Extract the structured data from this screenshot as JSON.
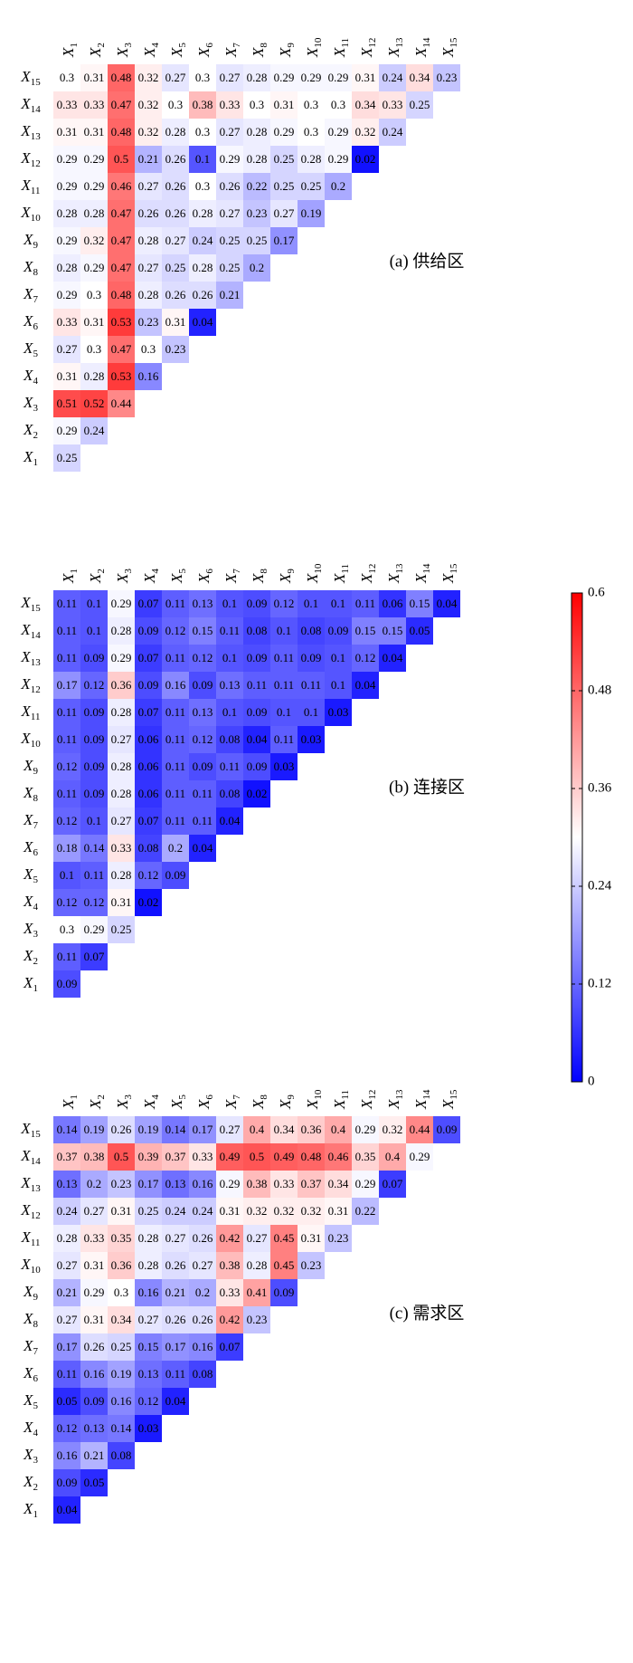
{
  "chart_data": {
    "type": "heatmap",
    "colorbar": {
      "range": [
        0,
        0.6
      ],
      "ticks": [
        "0",
        "0.12",
        "0.24",
        "0.36",
        "0.48",
        "0.6"
      ],
      "colors": {
        "low": "#0000ff",
        "mid": "#ffffff",
        "high": "#ff0000"
      }
    },
    "variable_labels": [
      {
        "base": "X",
        "sub": "1"
      },
      {
        "base": "X",
        "sub": "2"
      },
      {
        "base": "X",
        "sub": "3"
      },
      {
        "base": "X",
        "sub": "4"
      },
      {
        "base": "X",
        "sub": "5"
      },
      {
        "base": "X",
        "sub": "6"
      },
      {
        "base": "X",
        "sub": "7"
      },
      {
        "base": "X",
        "sub": "8"
      },
      {
        "base": "X",
        "sub": "9"
      },
      {
        "base": "X",
        "sub": "10"
      },
      {
        "base": "X",
        "sub": "11"
      },
      {
        "base": "X",
        "sub": "12"
      },
      {
        "base": "X",
        "sub": "13"
      },
      {
        "base": "X",
        "sub": "14"
      },
      {
        "base": "X",
        "sub": "15"
      }
    ],
    "panels": [
      {
        "label": "(a) 供给区",
        "matrix": [
          [
            "0.25"
          ],
          [
            "0.29",
            "0.24"
          ],
          [
            "0.51",
            "0.52",
            "0.44"
          ],
          [
            "0.31",
            "0.28",
            "0.53",
            "0.16"
          ],
          [
            "0.27",
            "0.3",
            "0.47",
            "0.3",
            "0.23"
          ],
          [
            "0.33",
            "0.31",
            "0.53",
            "0.23",
            "0.31",
            "0.04"
          ],
          [
            "0.29",
            "0.3",
            "0.48",
            "0.28",
            "0.26",
            "0.26",
            "0.21"
          ],
          [
            "0.28",
            "0.29",
            "0.47",
            "0.27",
            "0.25",
            "0.28",
            "0.25",
            "0.2"
          ],
          [
            "0.29",
            "0.32",
            "0.47",
            "0.28",
            "0.27",
            "0.24",
            "0.25",
            "0.25",
            "0.17"
          ],
          [
            "0.28",
            "0.28",
            "0.47",
            "0.26",
            "0.26",
            "0.28",
            "0.27",
            "0.23",
            "0.27",
            "0.19"
          ],
          [
            "0.29",
            "0.29",
            "0.46",
            "0.27",
            "0.26",
            "0.3",
            "0.26",
            "0.22",
            "0.25",
            "0.25",
            "0.2"
          ],
          [
            "0.29",
            "0.29",
            "0.5",
            "0.21",
            "0.26",
            "0.1",
            "0.29",
            "0.28",
            "0.25",
            "0.28",
            "0.29",
            "0.02"
          ],
          [
            "0.31",
            "0.31",
            "0.48",
            "0.32",
            "0.28",
            "0.3",
            "0.27",
            "0.28",
            "0.29",
            "0.3",
            "0.29",
            "0.32",
            "0.24"
          ],
          [
            "0.33",
            "0.33",
            "0.47",
            "0.32",
            "0.3",
            "0.38",
            "0.33",
            "0.3",
            "0.31",
            "0.3",
            "0.3",
            "0.34",
            "0.33",
            "0.25"
          ],
          [
            "0.3",
            "0.31",
            "0.48",
            "0.32",
            "0.27",
            "0.3",
            "0.27",
            "0.28",
            "0.29",
            "0.29",
            "0.29",
            "0.31",
            "0.24",
            "0.34",
            "0.23"
          ]
        ]
      },
      {
        "label": "(b) 连接区",
        "matrix": [
          [
            "0.09"
          ],
          [
            "0.11",
            "0.07"
          ],
          [
            "0.3",
            "0.29",
            "0.25"
          ],
          [
            "0.12",
            "0.12",
            "0.31",
            "0.02"
          ],
          [
            "0.1",
            "0.11",
            "0.28",
            "0.12",
            "0.09"
          ],
          [
            "0.18",
            "0.14",
            "0.33",
            "0.08",
            "0.2",
            "0.04"
          ],
          [
            "0.12",
            "0.1",
            "0.27",
            "0.07",
            "0.11",
            "0.11",
            "0.04"
          ],
          [
            "0.11",
            "0.09",
            "0.28",
            "0.06",
            "0.11",
            "0.11",
            "0.08",
            "0.02"
          ],
          [
            "0.12",
            "0.09",
            "0.28",
            "0.06",
            "0.11",
            "0.09",
            "0.11",
            "0.09",
            "0.03"
          ],
          [
            "0.11",
            "0.09",
            "0.27",
            "0.06",
            "0.11",
            "0.12",
            "0.08",
            "0.04",
            "0.11",
            "0.03"
          ],
          [
            "0.11",
            "0.09",
            "0.28",
            "0.07",
            "0.11",
            "0.13",
            "0.1",
            "0.09",
            "0.1",
            "0.1",
            "0.03"
          ],
          [
            "0.17",
            "0.12",
            "0.36",
            "0.09",
            "0.16",
            "0.09",
            "0.13",
            "0.11",
            "0.11",
            "0.11",
            "0.1",
            "0.04"
          ],
          [
            "0.11",
            "0.09",
            "0.29",
            "0.07",
            "0.11",
            "0.12",
            "0.1",
            "0.09",
            "0.11",
            "0.09",
            "0.1",
            "0.12",
            "0.04"
          ],
          [
            "0.11",
            "0.1",
            "0.28",
            "0.09",
            "0.12",
            "0.15",
            "0.11",
            "0.08",
            "0.1",
            "0.08",
            "0.09",
            "0.15",
            "0.15",
            "0.05"
          ],
          [
            "0.11",
            "0.1",
            "0.29",
            "0.07",
            "0.11",
            "0.13",
            "0.1",
            "0.09",
            "0.12",
            "0.1",
            "0.1",
            "0.11",
            "0.06",
            "0.15",
            "0.04"
          ]
        ]
      },
      {
        "label": "(c) 需求区",
        "matrix": [
          [
            "0.04"
          ],
          [
            "0.09",
            "0.05"
          ],
          [
            "0.16",
            "0.21",
            "0.08"
          ],
          [
            "0.12",
            "0.13",
            "0.14",
            "0.03"
          ],
          [
            "0.05",
            "0.09",
            "0.16",
            "0.12",
            "0.04"
          ],
          [
            "0.11",
            "0.16",
            "0.19",
            "0.13",
            "0.11",
            "0.08"
          ],
          [
            "0.17",
            "0.26",
            "0.25",
            "0.15",
            "0.17",
            "0.16",
            "0.07"
          ],
          [
            "0.27",
            "0.31",
            "0.34",
            "0.27",
            "0.26",
            "0.26",
            "0.42",
            "0.23"
          ],
          [
            "0.21",
            "0.29",
            "0.3",
            "0.16",
            "0.21",
            "0.2",
            "0.33",
            "0.41",
            "0.09"
          ],
          [
            "0.27",
            "0.31",
            "0.36",
            "0.28",
            "0.26",
            "0.27",
            "0.38",
            "0.28",
            "0.45",
            "0.23"
          ],
          [
            "0.28",
            "0.33",
            "0.35",
            "0.28",
            "0.27",
            "0.26",
            "0.42",
            "0.27",
            "0.45",
            "0.31",
            "0.23"
          ],
          [
            "0.24",
            "0.27",
            "0.31",
            "0.25",
            "0.24",
            "0.24",
            "0.31",
            "0.32",
            "0.32",
            "0.32",
            "0.31",
            "0.22"
          ],
          [
            "0.13",
            "0.2",
            "0.23",
            "0.17",
            "0.13",
            "0.16",
            "0.29",
            "0.38",
            "0.33",
            "0.37",
            "0.34",
            "0.29",
            "0.07"
          ],
          [
            "0.37",
            "0.38",
            "0.5",
            "0.39",
            "0.37",
            "0.33",
            "0.49",
            "0.5",
            "0.49",
            "0.48",
            "0.46",
            "0.35",
            "0.4",
            "0.29"
          ],
          [
            "0.14",
            "0.19",
            "0.26",
            "0.19",
            "0.14",
            "0.17",
            "0.27",
            "0.4",
            "0.34",
            "0.36",
            "0.4",
            "0.29",
            "0.32",
            "0.44",
            "0.09"
          ]
        ]
      }
    ]
  }
}
